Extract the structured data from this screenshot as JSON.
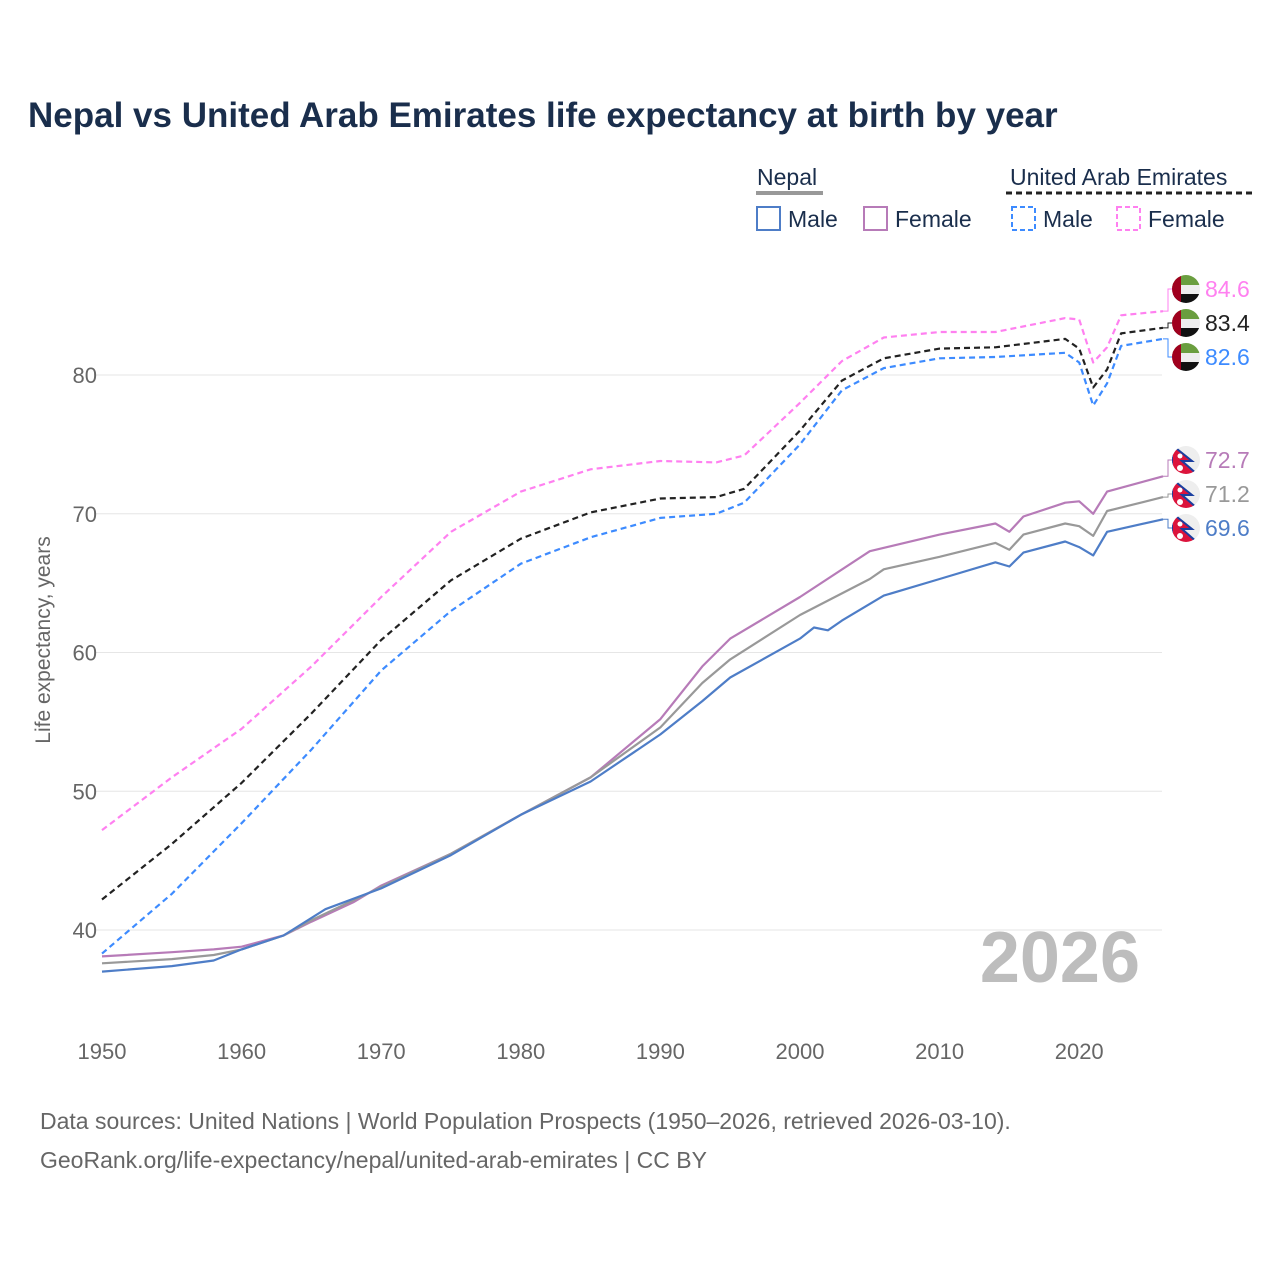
{
  "title": "Nepal vs United Arab Emirates life expectancy at birth by year",
  "sources": [
    "Data sources: United Nations | World Population Prospects (1950–2026, retrieved 2026-03-10).",
    "GeoRank.org/life-expectancy/nepal/united-arab-emirates | CC BY"
  ],
  "chart_data": {
    "type": "line",
    "title": "Nepal vs United Arab Emirates life expectancy at birth by year",
    "xlabel": "",
    "ylabel": "Life expectancy, years",
    "xlim": [
      1950,
      2026
    ],
    "ylim": [
      35.5,
      86
    ],
    "x_ticks": [
      "1950",
      "1960",
      "1970",
      "1980",
      "1990",
      "2000",
      "2010",
      "2020"
    ],
    "y_ticks": [
      "40",
      "50",
      "60",
      "70",
      "80"
    ],
    "grid": true,
    "year_watermark": "2026",
    "legend": {
      "placement": "top-right",
      "groups": [
        {
          "label": "Nepal",
          "items": [
            "Male",
            "Female"
          ]
        },
        {
          "label": "United Arab Emirates",
          "items": [
            "Male",
            "Female"
          ]
        }
      ]
    },
    "series": [
      {
        "name": "United Arab Emirates Female",
        "color": "#ff80f0",
        "dashed": true,
        "flag": "uae",
        "end_label": "84.6",
        "points": [
          [
            1950,
            47.2
          ],
          [
            1955,
            51
          ],
          [
            1960,
            54.5
          ],
          [
            1965,
            59
          ],
          [
            1970,
            64
          ],
          [
            1975,
            68.7
          ],
          [
            1980,
            71.6
          ],
          [
            1985,
            73.2
          ],
          [
            1990,
            73.8
          ],
          [
            1994,
            73.7
          ],
          [
            1996,
            74.2
          ],
          [
            2000,
            78
          ],
          [
            2003,
            81
          ],
          [
            2006,
            82.7
          ],
          [
            2010,
            83.1
          ],
          [
            2014,
            83.1
          ],
          [
            2019,
            84.1
          ],
          [
            2020,
            84.0
          ],
          [
            2021,
            80.9
          ],
          [
            2022,
            82
          ],
          [
            2023,
            84.3
          ],
          [
            2026,
            84.6
          ]
        ]
      },
      {
        "name": "United Arab Emirates Total",
        "color": "#222222",
        "dashed": true,
        "flag": "uae",
        "end_label": "83.4",
        "points": [
          [
            1950,
            42.2
          ],
          [
            1955,
            46.2
          ],
          [
            1960,
            50.6
          ],
          [
            1965,
            55.6
          ],
          [
            1970,
            60.9
          ],
          [
            1975,
            65.2
          ],
          [
            1980,
            68.2
          ],
          [
            1985,
            70.1
          ],
          [
            1990,
            71.1
          ],
          [
            1994,
            71.2
          ],
          [
            1996,
            71.8
          ],
          [
            2000,
            76
          ],
          [
            2003,
            79.6
          ],
          [
            2006,
            81.2
          ],
          [
            2010,
            81.9
          ],
          [
            2014,
            82.0
          ],
          [
            2019,
            82.6
          ],
          [
            2020,
            81.9
          ],
          [
            2021,
            79.1
          ],
          [
            2022,
            80.4
          ],
          [
            2023,
            83.0
          ],
          [
            2026,
            83.4
          ]
        ]
      },
      {
        "name": "United Arab Emirates Male",
        "color": "#3d8bff",
        "dashed": true,
        "flag": "uae",
        "end_label": "82.6",
        "points": [
          [
            1950,
            38.3
          ],
          [
            1955,
            42.6
          ],
          [
            1960,
            47.7
          ],
          [
            1965,
            53.0
          ],
          [
            1970,
            58.7
          ],
          [
            1975,
            63.0
          ],
          [
            1980,
            66.4
          ],
          [
            1985,
            68.3
          ],
          [
            1990,
            69.7
          ],
          [
            1994,
            70.0
          ],
          [
            1996,
            70.8
          ],
          [
            2000,
            75.0
          ],
          [
            2003,
            78.9
          ],
          [
            2006,
            80.5
          ],
          [
            2010,
            81.2
          ],
          [
            2014,
            81.3
          ],
          [
            2019,
            81.6
          ],
          [
            2020,
            80.9
          ],
          [
            2021,
            77.8
          ],
          [
            2022,
            79.4
          ],
          [
            2023,
            82.1
          ],
          [
            2026,
            82.6
          ]
        ]
      },
      {
        "name": "Nepal Female",
        "color": "#b77bb8",
        "dashed": false,
        "flag": "nepal",
        "end_label": "72.7",
        "points": [
          [
            1950,
            38.1
          ],
          [
            1955,
            38.4
          ],
          [
            1958,
            38.6
          ],
          [
            1960,
            38.8
          ],
          [
            1963,
            39.6
          ],
          [
            1965,
            40.6
          ],
          [
            1968,
            42.0
          ],
          [
            1970,
            43.2
          ],
          [
            1975,
            45.5
          ],
          [
            1980,
            48.3
          ],
          [
            1985,
            51.0
          ],
          [
            1990,
            55.2
          ],
          [
            1993,
            59.0
          ],
          [
            1995,
            61.0
          ],
          [
            2000,
            64.0
          ],
          [
            2005,
            67.3
          ],
          [
            2010,
            68.5
          ],
          [
            2014,
            69.3
          ],
          [
            2015,
            68.7
          ],
          [
            2016,
            69.8
          ],
          [
            2019,
            70.8
          ],
          [
            2020,
            70.9
          ],
          [
            2021,
            70.0
          ],
          [
            2022,
            71.6
          ],
          [
            2026,
            72.7
          ]
        ]
      },
      {
        "name": "Nepal Total",
        "color": "#999999",
        "dashed": false,
        "flag": "nepal",
        "end_label": "71.2",
        "points": [
          [
            1950,
            37.6
          ],
          [
            1955,
            37.9
          ],
          [
            1958,
            38.2
          ],
          [
            1960,
            38.6
          ],
          [
            1963,
            39.6
          ],
          [
            1965,
            40.7
          ],
          [
            1970,
            43.1
          ],
          [
            1975,
            45.5
          ],
          [
            1980,
            48.3
          ],
          [
            1985,
            51.0
          ],
          [
            1990,
            54.6
          ],
          [
            1993,
            57.8
          ],
          [
            1995,
            59.5
          ],
          [
            2000,
            62.7
          ],
          [
            2005,
            65.3
          ],
          [
            2006,
            66.0
          ],
          [
            2010,
            66.9
          ],
          [
            2014,
            67.9
          ],
          [
            2015,
            67.4
          ],
          [
            2016,
            68.5
          ],
          [
            2019,
            69.3
          ],
          [
            2020,
            69.1
          ],
          [
            2021,
            68.4
          ],
          [
            2022,
            70.2
          ],
          [
            2026,
            71.2
          ]
        ]
      },
      {
        "name": "Nepal Male",
        "color": "#4e7dc7",
        "dashed": false,
        "flag": "nepal",
        "end_label": "69.6",
        "points": [
          [
            1950,
            37.0
          ],
          [
            1955,
            37.4
          ],
          [
            1958,
            37.8
          ],
          [
            1960,
            38.6
          ],
          [
            1963,
            39.6
          ],
          [
            1966,
            41.5
          ],
          [
            1970,
            43.0
          ],
          [
            1975,
            45.4
          ],
          [
            1980,
            48.3
          ],
          [
            1985,
            50.7
          ],
          [
            1990,
            54.1
          ],
          [
            1993,
            56.5
          ],
          [
            1995,
            58.2
          ],
          [
            2000,
            61.0
          ],
          [
            2001,
            61.8
          ],
          [
            2002,
            61.6
          ],
          [
            2003,
            62.3
          ],
          [
            2006,
            64.1
          ],
          [
            2010,
            65.3
          ],
          [
            2014,
            66.5
          ],
          [
            2015,
            66.2
          ],
          [
            2016,
            67.2
          ],
          [
            2019,
            68.0
          ],
          [
            2020,
            67.6
          ],
          [
            2021,
            67.0
          ],
          [
            2022,
            68.7
          ],
          [
            2026,
            69.6
          ]
        ]
      }
    ]
  }
}
